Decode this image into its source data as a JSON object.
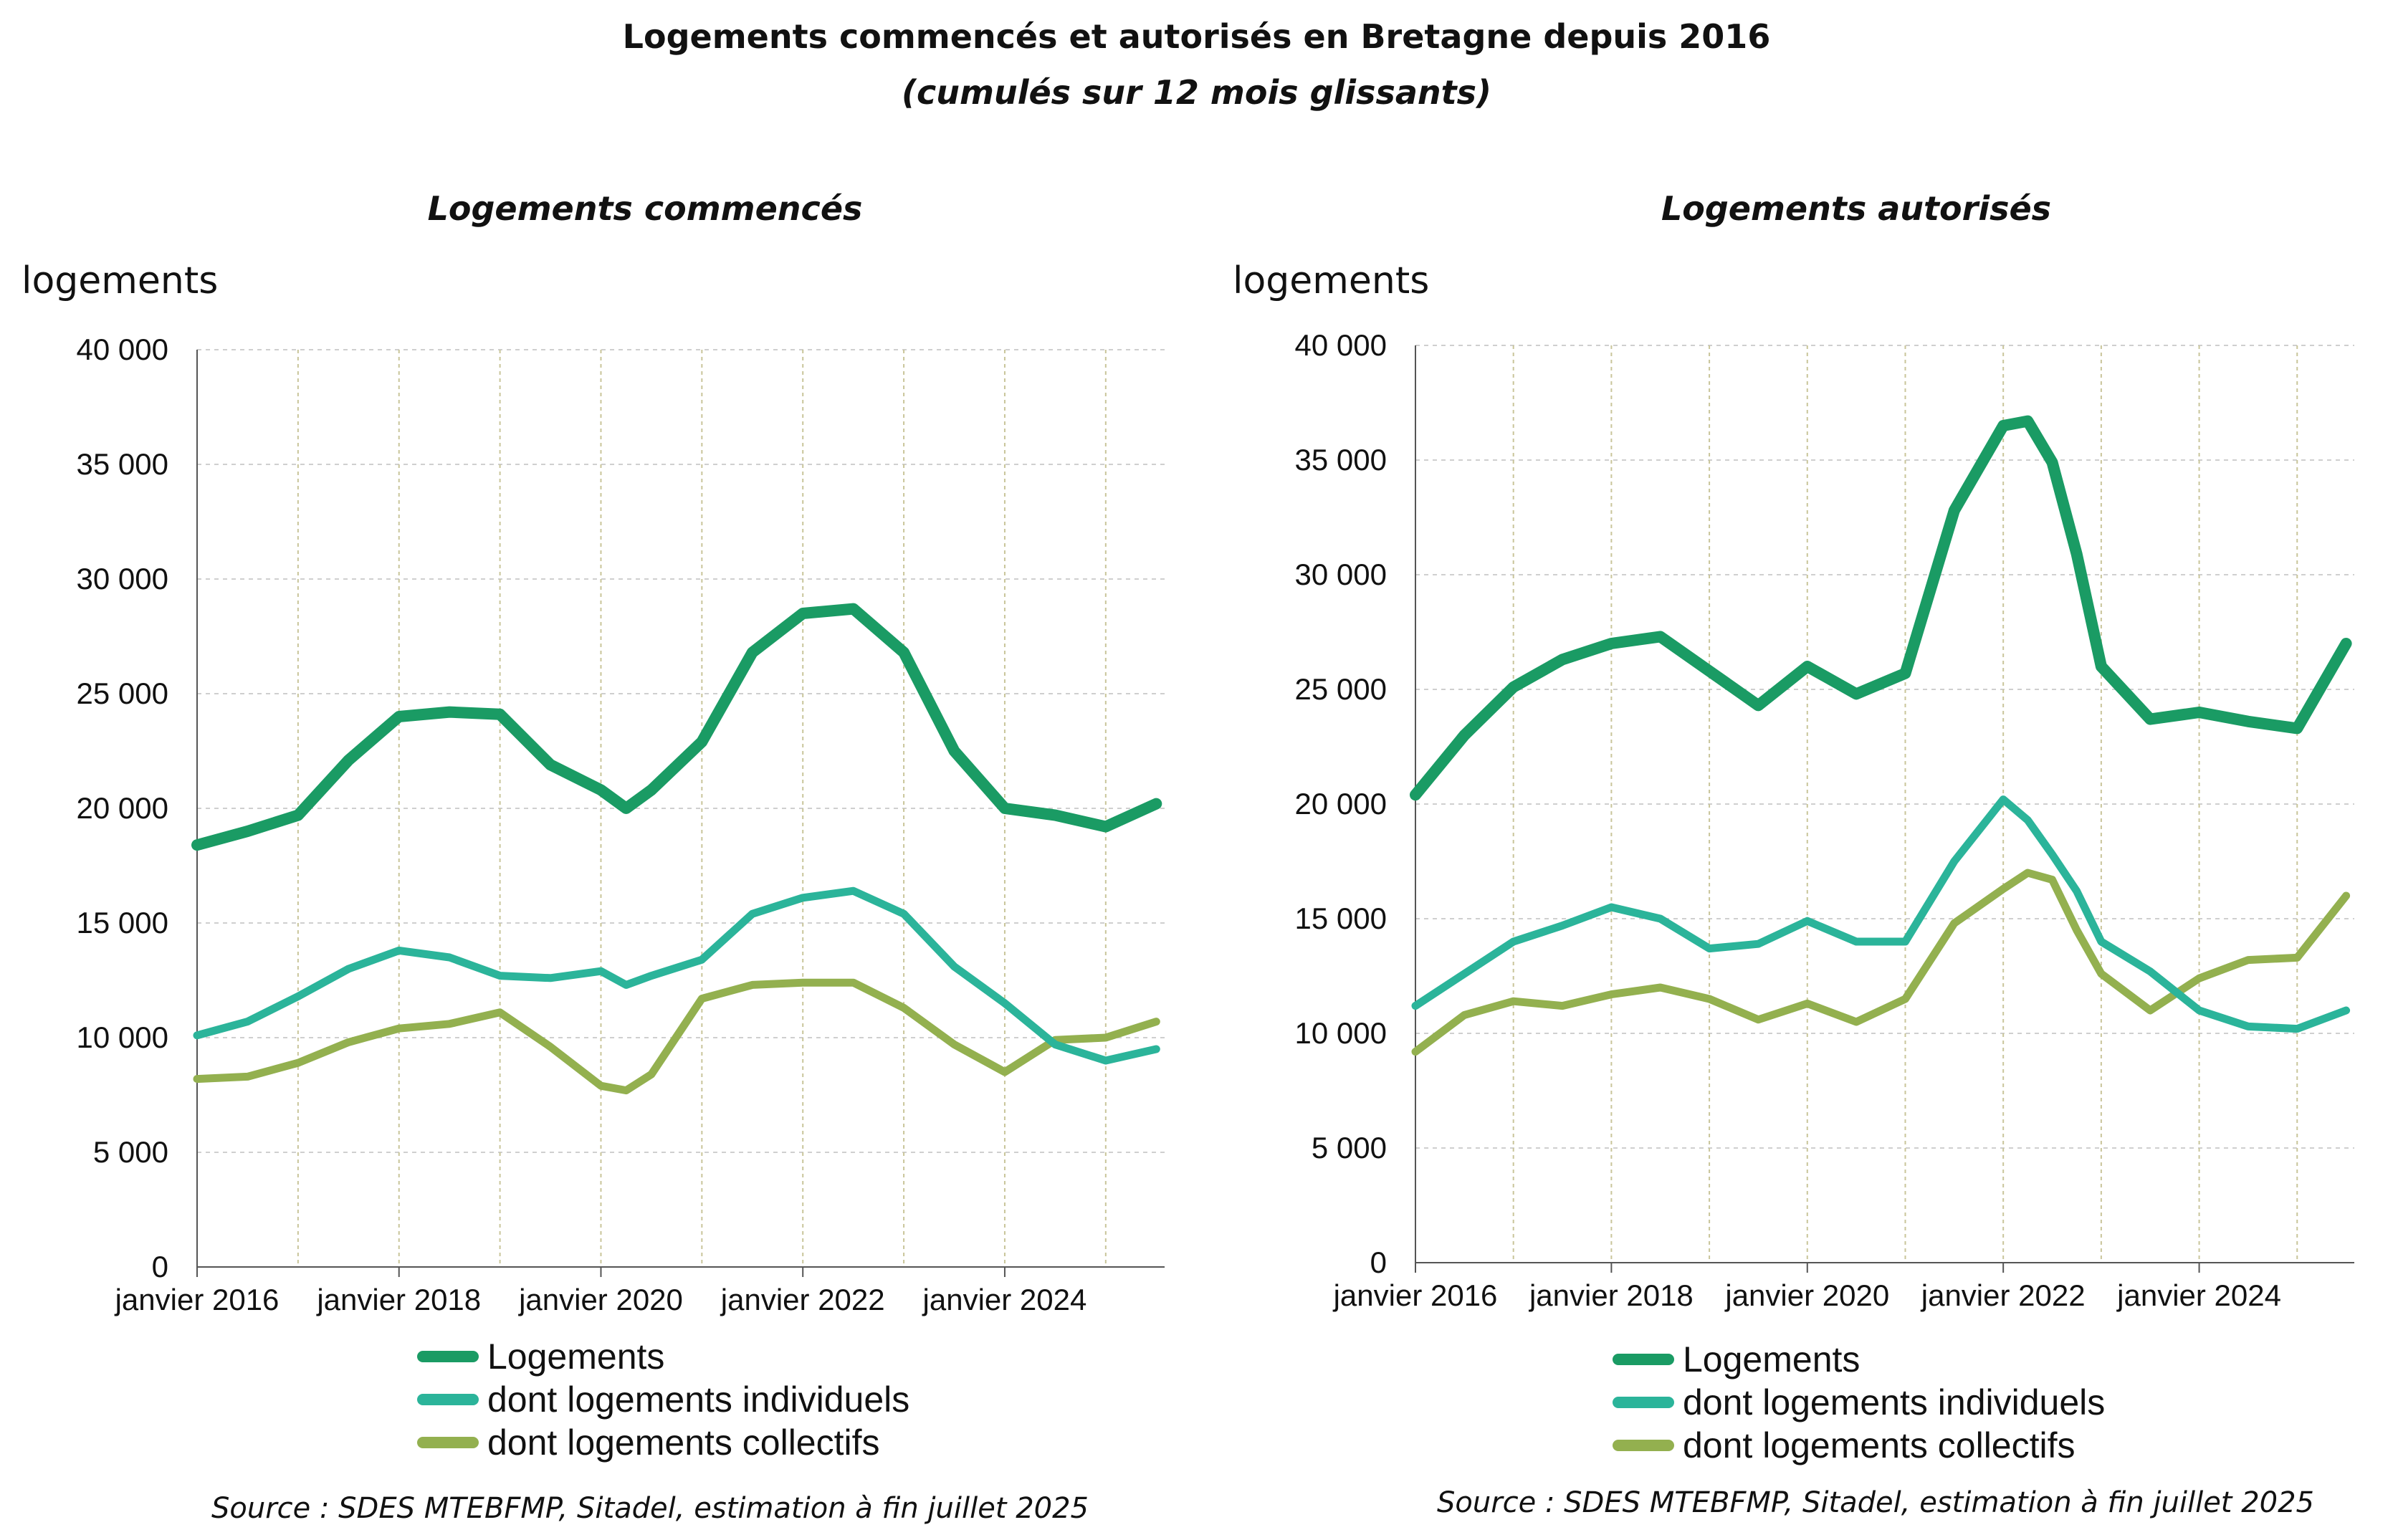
{
  "title": "Logements commencés et autorisés en Bretagne depuis 2016",
  "subtitle": "(cumulés sur 12 mois glissants)",
  "colors": {
    "logements": "#1a9b64",
    "individuels": "#2bb49a",
    "collectifs": "#93b04f"
  },
  "chart_data": [
    {
      "type": "line",
      "title": "Logements commencés",
      "ylabel": "logements",
      "ylim": [
        0,
        40000
      ],
      "yticks": [
        "0",
        "5 000",
        "10 000",
        "15 000",
        "20 000",
        "25 000",
        "30 000",
        "35 000",
        "40 000"
      ],
      "xticks": [
        "janvier 2016",
        "janvier 2018",
        "janvier 2020",
        "janvier 2022",
        "janvier 2024"
      ],
      "x_range": [
        "2016-01",
        "2025-07"
      ],
      "legend_position": "bottom",
      "series": [
        {
          "name": "Logements",
          "x": [
            "2016-01",
            "2016-07",
            "2017-01",
            "2017-07",
            "2018-01",
            "2018-07",
            "2019-01",
            "2019-07",
            "2020-01",
            "2020-04",
            "2020-07",
            "2021-01",
            "2021-07",
            "2022-01",
            "2022-07",
            "2023-01",
            "2023-07",
            "2024-01",
            "2024-07",
            "2025-01",
            "2025-07"
          ],
          "values": [
            18400,
            19000,
            19700,
            22100,
            24000,
            24200,
            24100,
            21900,
            20800,
            20000,
            20800,
            22900,
            26800,
            28500,
            28700,
            26800,
            22500,
            20000,
            19700,
            19200,
            20200
          ]
        },
        {
          "name": "dont logements individuels",
          "x": [
            "2016-01",
            "2016-07",
            "2017-01",
            "2017-07",
            "2018-01",
            "2018-07",
            "2019-01",
            "2019-07",
            "2020-01",
            "2020-04",
            "2020-07",
            "2021-01",
            "2021-07",
            "2022-01",
            "2022-07",
            "2023-01",
            "2023-07",
            "2024-01",
            "2024-07",
            "2025-01",
            "2025-07"
          ],
          "values": [
            10100,
            10700,
            11800,
            13000,
            13800,
            13500,
            12700,
            12600,
            12900,
            12300,
            12700,
            13400,
            15400,
            16100,
            16400,
            15400,
            13100,
            11500,
            9700,
            9000,
            9500
          ]
        },
        {
          "name": "dont logements collectifs",
          "x": [
            "2016-01",
            "2016-07",
            "2017-01",
            "2017-07",
            "2018-01",
            "2018-07",
            "2019-01",
            "2019-07",
            "2020-01",
            "2020-04",
            "2020-07",
            "2021-01",
            "2021-07",
            "2022-01",
            "2022-07",
            "2023-01",
            "2023-07",
            "2024-01",
            "2024-07",
            "2025-01",
            "2025-07"
          ],
          "values": [
            8200,
            8300,
            8900,
            9800,
            10400,
            10600,
            11100,
            9600,
            7900,
            7700,
            8400,
            11700,
            12300,
            12400,
            12400,
            11300,
            9700,
            8500,
            9900,
            10000,
            10700
          ]
        }
      ]
    },
    {
      "type": "line",
      "title": "Logements autorisés",
      "ylabel": "logements",
      "ylim": [
        0,
        40000
      ],
      "yticks": [
        "0",
        "5 000",
        "10 000",
        "15 000",
        "20 000",
        "25 000",
        "30 000",
        "35 000",
        "40 000"
      ],
      "xticks": [
        "janvier 2016",
        "janvier 2018",
        "janvier 2020",
        "janvier 2022",
        "janvier 2024"
      ],
      "x_range": [
        "2016-01",
        "2025-07"
      ],
      "legend_position": "bottom",
      "series": [
        {
          "name": "Logements",
          "x": [
            "2016-01",
            "2016-07",
            "2017-01",
            "2017-07",
            "2018-01",
            "2018-07",
            "2019-01",
            "2019-07",
            "2020-01",
            "2020-07",
            "2021-01",
            "2021-07",
            "2022-01",
            "2022-04",
            "2022-07",
            "2022-10",
            "2023-01",
            "2023-07",
            "2024-01",
            "2024-07",
            "2025-01",
            "2025-07"
          ],
          "values": [
            20400,
            23000,
            25100,
            26300,
            27000,
            27300,
            25800,
            24300,
            26000,
            24800,
            25700,
            32800,
            36500,
            36700,
            34900,
            30900,
            26000,
            23700,
            24000,
            23600,
            23300,
            27000
          ]
        },
        {
          "name": "dont logements individuels",
          "x": [
            "2016-01",
            "2016-07",
            "2017-01",
            "2017-07",
            "2018-01",
            "2018-07",
            "2019-01",
            "2019-07",
            "2020-01",
            "2020-07",
            "2021-01",
            "2021-07",
            "2022-01",
            "2022-04",
            "2022-07",
            "2022-10",
            "2023-01",
            "2023-07",
            "2024-01",
            "2024-07",
            "2025-01",
            "2025-07"
          ],
          "values": [
            11200,
            12600,
            14000,
            14700,
            15500,
            15000,
            13700,
            13900,
            14900,
            14000,
            14000,
            17500,
            20200,
            19300,
            17800,
            16200,
            14000,
            12700,
            11000,
            10300,
            10200,
            11000
          ]
        },
        {
          "name": "dont logements collectifs",
          "x": [
            "2016-01",
            "2016-07",
            "2017-01",
            "2017-07",
            "2018-01",
            "2018-07",
            "2019-01",
            "2019-07",
            "2020-01",
            "2020-07",
            "2021-01",
            "2021-07",
            "2022-01",
            "2022-04",
            "2022-07",
            "2022-10",
            "2023-01",
            "2023-07",
            "2024-01",
            "2024-07",
            "2025-01",
            "2025-07"
          ],
          "values": [
            9200,
            10800,
            11400,
            11200,
            11700,
            12000,
            11500,
            10600,
            11300,
            10500,
            11500,
            14800,
            16300,
            17000,
            16700,
            14500,
            12600,
            11000,
            12400,
            13200,
            13300,
            16000
          ]
        }
      ]
    }
  ],
  "panels": [
    {
      "source": "Source : SDES MTEBFMP, Sitadel, estimation à fin juillet 2025"
    },
    {
      "source": "Source : SDES MTEBFMP, Sitadel, estimation à fin juillet 2025"
    }
  ]
}
